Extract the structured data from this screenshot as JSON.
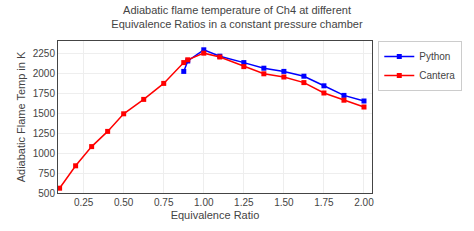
{
  "chart_data": {
    "type": "line",
    "title": "Adiabatic flame temperature of Ch4 at different Equivalence Ratios in a constant pressure chamber",
    "x_label": "Equivalence Ratio",
    "y_label": "Adiabatic Flame Temp in K",
    "series": [
      {
        "name": "Python",
        "color": "blue",
        "x": [
          0.875,
          0.9,
          1.0,
          1.1,
          1.25,
          1.375,
          1.5,
          1.625,
          1.75,
          1.875,
          2.0
        ],
        "values": [
          2020,
          2150,
          2290,
          2210,
          2130,
          2060,
          2020,
          1960,
          1840,
          1720,
          1650
        ]
      },
      {
        "name": "Cantera",
        "color": "red",
        "x": [
          0.1,
          0.2,
          0.3,
          0.4,
          0.5,
          0.625,
          0.75,
          0.875,
          0.9,
          1.0,
          1.1,
          1.25,
          1.375,
          1.5,
          1.625,
          1.75,
          1.875,
          2.0
        ],
        "values": [
          560,
          840,
          1080,
          1270,
          1490,
          1670,
          1870,
          2130,
          2165,
          2248,
          2200,
          2080,
          1990,
          1950,
          1880,
          1750,
          1660,
          1575
        ]
      }
    ],
    "marker": "square",
    "line_style": "solid",
    "xlim": [
      0.09,
      2.05
    ],
    "ylim": [
      500,
      2400
    ],
    "xticks": [
      0.25,
      {
        "value": 0.5,
        "label": "0.50"
      },
      0.75,
      {
        "value": 1.0,
        "label": "1.00"
      },
      1.25,
      {
        "value": 1.5,
        "label": "1.50"
      },
      1.75,
      {
        "value": 2.0,
        "label": "2.00"
      }
    ],
    "yticks": [
      500,
      750,
      1000,
      1250,
      1500,
      1750,
      2000,
      2250
    ],
    "grid": true,
    "legend": "upper right"
  }
}
